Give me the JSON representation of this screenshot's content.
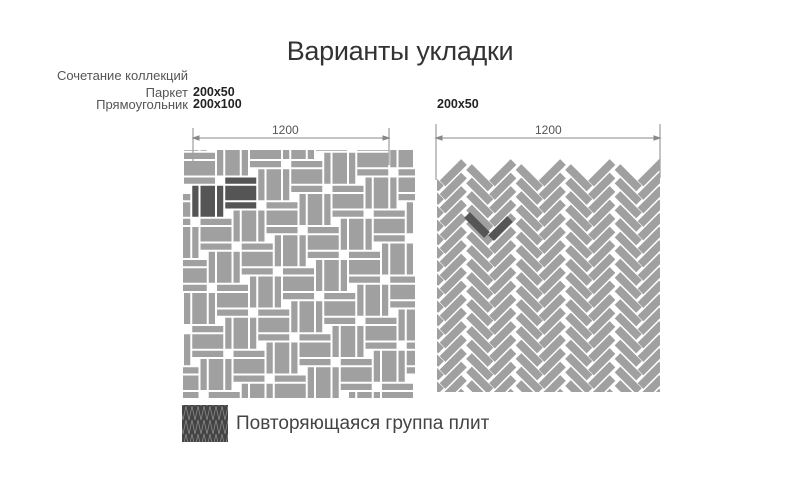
{
  "title": "Варианты укладки",
  "left_layout": {
    "combination_label": "Сочетание коллекций",
    "parquet_label": "Паркет",
    "parquet_size": "200x50",
    "rectangle_label": "Прямоугольник",
    "rectangle_size": "200x100",
    "dimension": "1200"
  },
  "right_layout": {
    "size": "200x50",
    "dimension": "1200"
  },
  "legend": {
    "label": "Повторяющаяся группа плит"
  },
  "colors": {
    "tile": "#a0a0a0",
    "highlight": "#555555",
    "dimension_line": "#888888"
  }
}
